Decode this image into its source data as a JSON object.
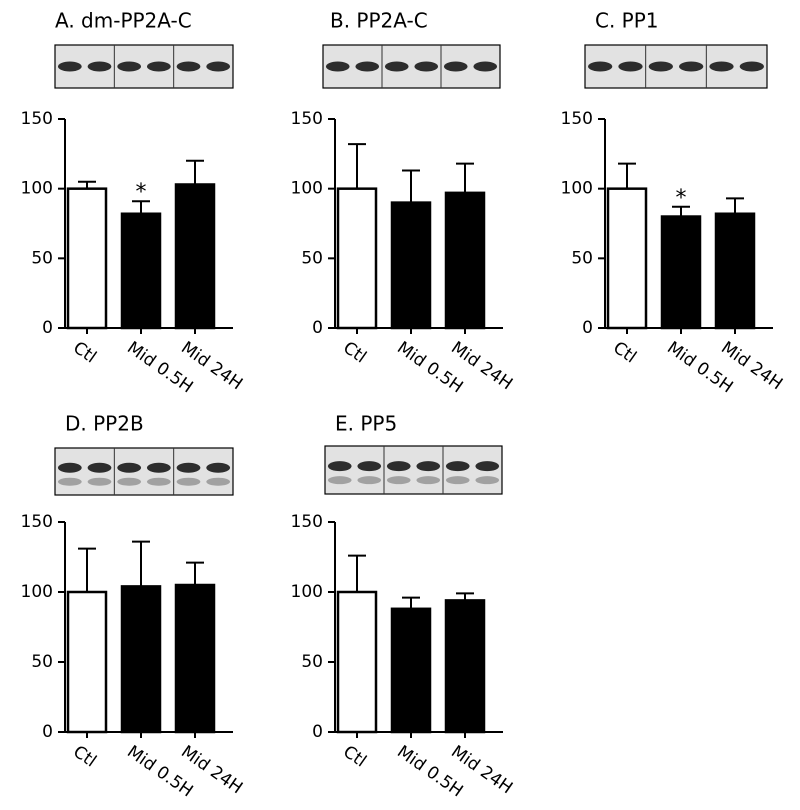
{
  "chart_data": [
    {
      "type": "bar",
      "title": "A. dm-PP2A-C",
      "categories": [
        "Ctl",
        "Mid 0.5H",
        "Mid 24H"
      ],
      "values": [
        100,
        82,
        103
      ],
      "errors": [
        5,
        9,
        17
      ],
      "colors": [
        "#ffffff",
        "#000000",
        "#000000"
      ],
      "ylim": [
        0,
        150
      ],
      "yticks": [
        0,
        50,
        100,
        150
      ],
      "annotations": [
        {
          "text": "*",
          "category": "Mid 0.5H"
        }
      ]
    },
    {
      "type": "bar",
      "title": "B. PP2A-C",
      "categories": [
        "Ctl",
        "Mid 0.5H",
        "Mid 24H"
      ],
      "values": [
        100,
        90,
        97
      ],
      "errors": [
        32,
        23,
        21
      ],
      "colors": [
        "#ffffff",
        "#000000",
        "#000000"
      ],
      "ylim": [
        0,
        150
      ],
      "yticks": [
        0,
        50,
        100,
        150
      ]
    },
    {
      "type": "bar",
      "title": "C. PP1",
      "categories": [
        "Ctl",
        "Mid 0.5H",
        "Mid 24H"
      ],
      "values": [
        100,
        80,
        82
      ],
      "errors": [
        18,
        7,
        11
      ],
      "colors": [
        "#ffffff",
        "#000000",
        "#000000"
      ],
      "ylim": [
        0,
        150
      ],
      "yticks": [
        0,
        50,
        100,
        150
      ],
      "annotations": [
        {
          "text": "*",
          "category": "Mid 0.5H"
        }
      ]
    },
    {
      "type": "bar",
      "title": "D. PP2B",
      "categories": [
        "Ctl",
        "Mid 0.5H",
        "Mid 24H"
      ],
      "values": [
        100,
        104,
        105
      ],
      "errors": [
        31,
        32,
        16
      ],
      "colors": [
        "#ffffff",
        "#000000",
        "#000000"
      ],
      "ylim": [
        0,
        150
      ],
      "yticks": [
        0,
        50,
        100,
        150
      ]
    },
    {
      "type": "bar",
      "title": "E. PP5",
      "categories": [
        "Ctl",
        "Mid 0.5H",
        "Mid 24H"
      ],
      "values": [
        100,
        88,
        94
      ],
      "errors": [
        26,
        8,
        5
      ],
      "colors": [
        "#ffffff",
        "#000000",
        "#000000"
      ],
      "ylim": [
        0,
        150
      ],
      "yticks": [
        0,
        50,
        100,
        150
      ]
    }
  ]
}
